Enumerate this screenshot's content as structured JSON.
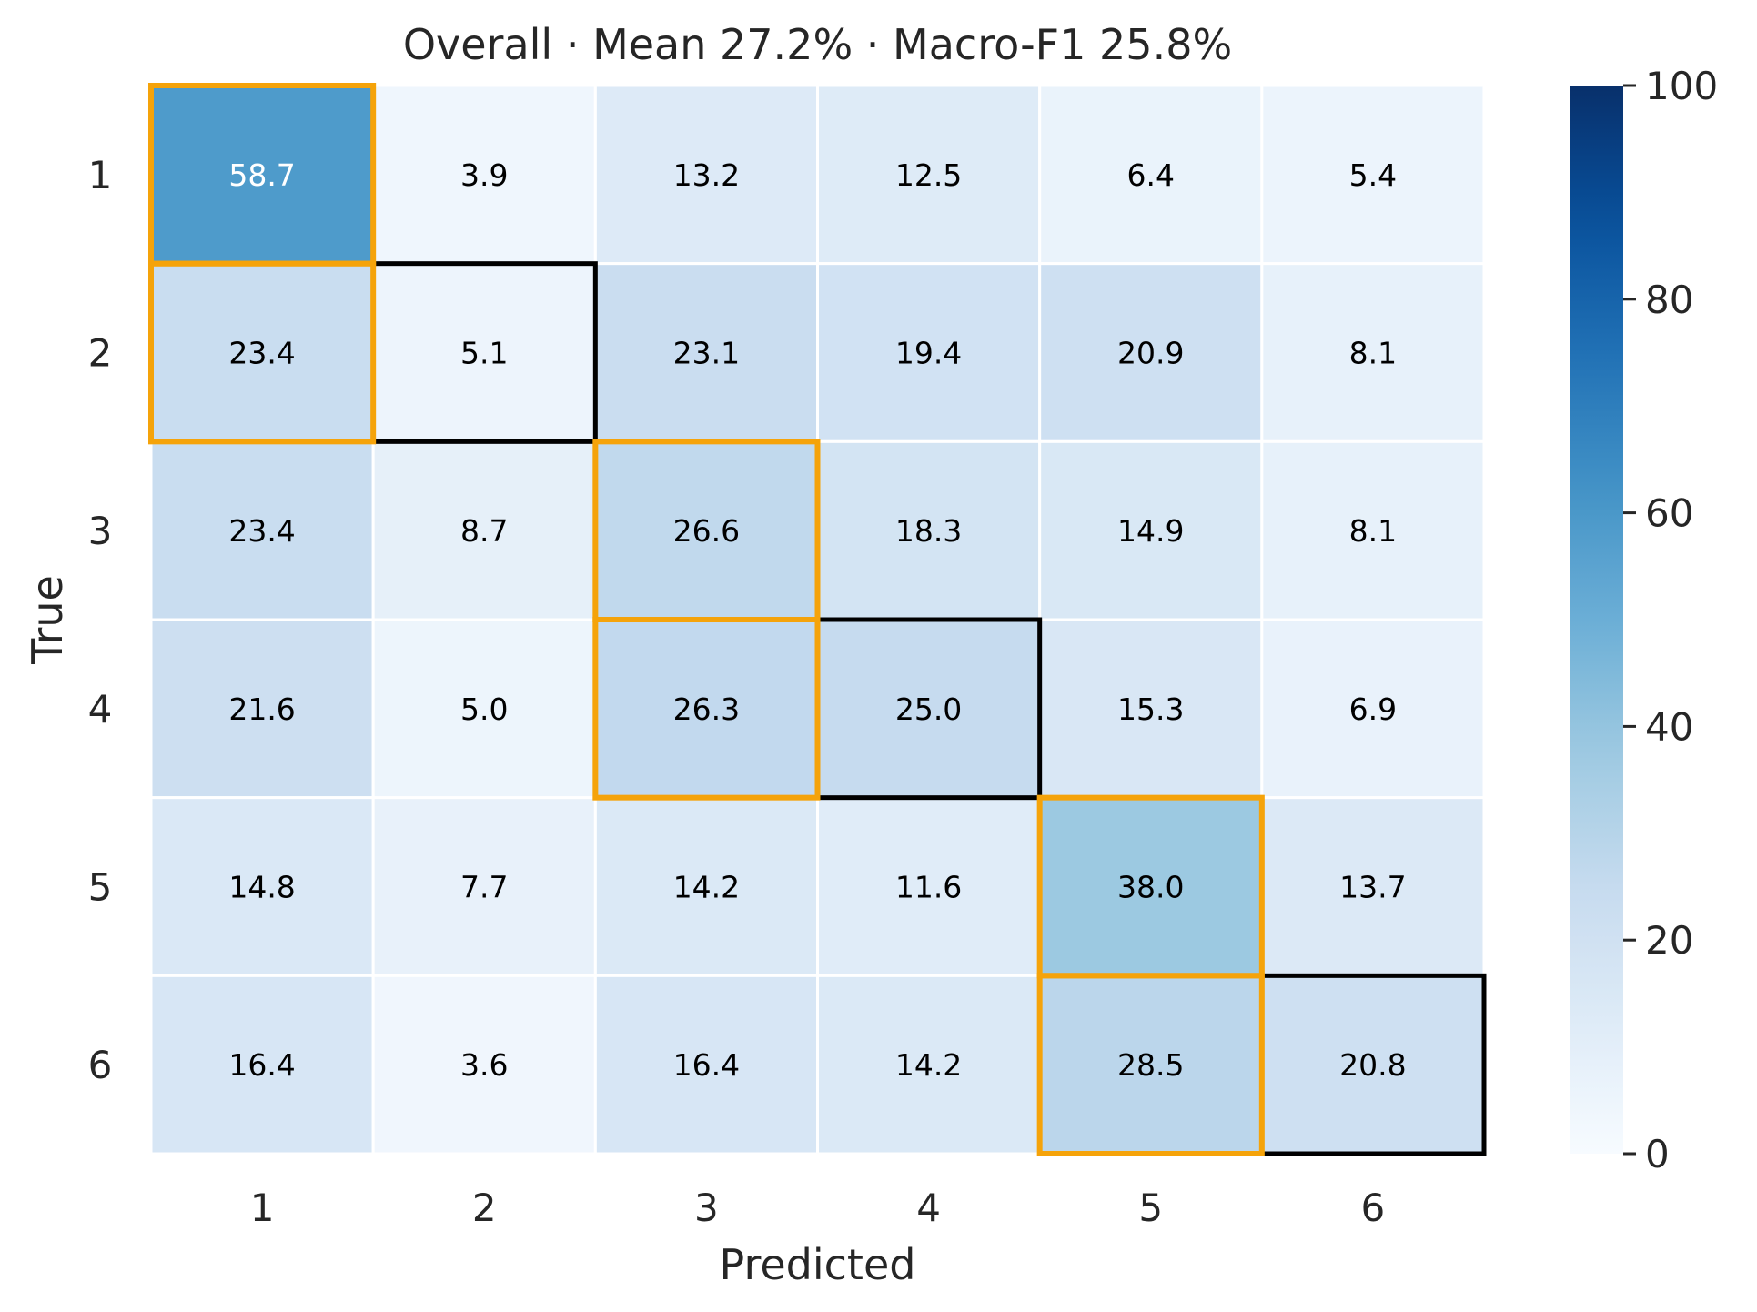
{
  "chart_data": {
    "type": "heatmap",
    "title": "Overall · Mean 27.2% · Macro-F1 25.8%",
    "xlabel": "Predicted",
    "ylabel": "True",
    "x_categories": [
      "1",
      "2",
      "3",
      "4",
      "5",
      "6"
    ],
    "y_categories": [
      "1",
      "2",
      "3",
      "4",
      "5",
      "6"
    ],
    "values": [
      [
        58.7,
        3.9,
        13.2,
        12.5,
        6.4,
        5.4
      ],
      [
        23.4,
        5.1,
        23.1,
        19.4,
        20.9,
        8.1
      ],
      [
        23.4,
        8.7,
        26.6,
        18.3,
        14.9,
        8.1
      ],
      [
        21.6,
        5.0,
        26.3,
        25.0,
        15.3,
        6.9
      ],
      [
        14.8,
        7.7,
        14.2,
        11.6,
        38.0,
        13.7
      ],
      [
        16.4,
        3.6,
        16.4,
        14.2,
        28.5,
        20.8
      ]
    ],
    "value_labels": [
      [
        "58.7",
        "3.9",
        "13.2",
        "12.5",
        "6.4",
        "5.4"
      ],
      [
        "23.4",
        "5.1",
        "23.1",
        "19.4",
        "20.9",
        "8.1"
      ],
      [
        "23.4",
        "8.7",
        "26.6",
        "18.3",
        "14.9",
        "8.1"
      ],
      [
        "21.6",
        "5.0",
        "26.3",
        "25.0",
        "15.3",
        "6.9"
      ],
      [
        "14.8",
        "7.7",
        "14.2",
        "11.6",
        "38.0",
        "13.7"
      ],
      [
        "16.4",
        "3.6",
        "16.4",
        "14.2",
        "28.5",
        "20.8"
      ]
    ],
    "colorbar": {
      "colormap": "Blues",
      "range": [
        0,
        100
      ],
      "ticks": [
        0,
        20,
        40,
        60,
        80,
        100
      ],
      "tick_labels": [
        "0",
        "20",
        "40",
        "60",
        "80",
        "100"
      ]
    },
    "highlights": {
      "max_per_row": [
        [
          0,
          0
        ],
        [
          1,
          0
        ],
        [
          2,
          2
        ],
        [
          3,
          2
        ],
        [
          4,
          4
        ],
        [
          5,
          4
        ]
      ],
      "diagonal": [
        [
          1,
          1
        ],
        [
          3,
          3
        ],
        [
          5,
          5
        ]
      ],
      "max_per_row_color": "#f5a30a",
      "diagonal_color": "#000000"
    }
  }
}
